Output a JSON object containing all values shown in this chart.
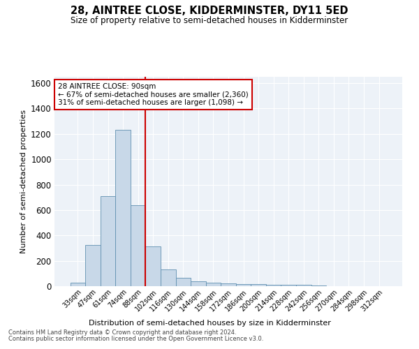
{
  "title": "28, AINTREE CLOSE, KIDDERMINSTER, DY11 5ED",
  "subtitle": "Size of property relative to semi-detached houses in Kidderminster",
  "xlabel": "Distribution of semi-detached houses by size in Kidderminster",
  "ylabel": "Number of semi-detached properties",
  "footnote1": "Contains HM Land Registry data © Crown copyright and database right 2024.",
  "footnote2": "Contains public sector information licensed under the Open Government Licence v3.0.",
  "annotation_line1": "28 AINTREE CLOSE: 90sqm",
  "annotation_line2": "← 67% of semi-detached houses are smaller (2,360)",
  "annotation_line3": "31% of semi-detached houses are larger (1,098) →",
  "bar_color": "#c8d8e8",
  "bar_edge_color": "#6090b0",
  "vline_color": "#cc0000",
  "background_color": "#edf2f8",
  "categories": [
    "33sqm",
    "47sqm",
    "61sqm",
    "74sqm",
    "88sqm",
    "102sqm",
    "116sqm",
    "130sqm",
    "144sqm",
    "158sqm",
    "172sqm",
    "186sqm",
    "200sqm",
    "214sqm",
    "228sqm",
    "242sqm",
    "256sqm",
    "270sqm",
    "284sqm",
    "298sqm",
    "312sqm"
  ],
  "values": [
    30,
    325,
    710,
    1230,
    640,
    315,
    130,
    65,
    38,
    28,
    22,
    18,
    15,
    13,
    10,
    12,
    5,
    2,
    2,
    1,
    1
  ],
  "ylim": [
    0,
    1650
  ],
  "yticks": [
    0,
    200,
    400,
    600,
    800,
    1000,
    1200,
    1400,
    1600
  ],
  "vline_position": 4.5,
  "grid_color": "#ffffff"
}
